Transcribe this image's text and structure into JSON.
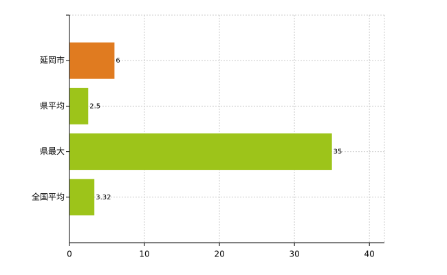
{
  "chart_data": {
    "type": "barh",
    "categories": [
      "延岡市",
      "県平均",
      "県最大",
      "全国平均"
    ],
    "values": [
      6,
      2.5,
      35,
      3.32
    ],
    "colors": [
      "#e07b20",
      "#9dc41a",
      "#9dc41a",
      "#9dc41a"
    ],
    "xlim": [
      0,
      42
    ],
    "xticks": [
      0,
      10,
      20,
      30,
      40
    ],
    "grid": true
  }
}
